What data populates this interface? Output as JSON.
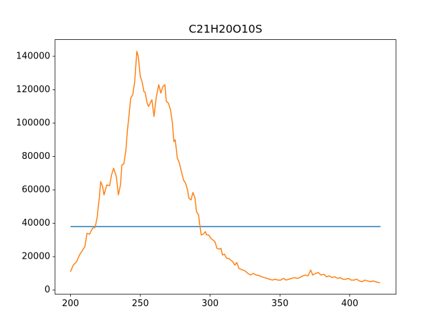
{
  "chart_data": {
    "type": "line",
    "title": "C21H20O10S",
    "series": [
      {
        "color": "#1f77b4",
        "x": [
          200,
          422
        ],
        "values": [
          38000,
          38000
        ]
      },
      {
        "color": "#ff7f0e",
        "x": [
          200,
          202,
          204.4,
          206.4,
          208.3,
          210.3,
          211.8,
          213.7,
          215.7,
          217.6,
          219,
          220.6,
          221.6,
          223,
          224,
          226,
          228,
          229.4,
          230.9,
          232.8,
          234.3,
          235.8,
          236.8,
          238.2,
          239.7,
          240.7,
          241.7,
          243.1,
          244.6,
          246,
          247.5,
          248.5,
          250,
          251.5,
          252.5,
          253.4,
          254.9,
          255.9,
          258.3,
          259.8,
          261.3,
          263.2,
          264.7,
          266.2,
          267.6,
          268.6,
          270.1,
          271.6,
          273,
          274,
          275,
          276.5,
          278,
          279.4,
          280.9,
          282.4,
          283.8,
          284.8,
          286.3,
          287.7,
          289.2,
          290.2,
          291.7,
          292.6,
          293.6,
          295.1,
          296.6,
          297.5,
          299,
          300.5,
          302,
          303.4,
          304.9,
          306.4,
          307.8,
          308.8,
          310.3,
          311.8,
          313.2,
          314.7,
          316.2,
          317.6,
          319.1,
          320.6,
          322,
          323.5,
          325,
          327,
          328.9,
          330.9,
          332.8,
          334.8,
          336.8,
          338.7,
          340.7,
          342.6,
          344.6,
          346.6,
          348.5,
          350.5,
          352.5,
          354.4,
          356.4,
          358.3,
          360.3,
          362.3,
          364.2,
          366.2,
          368.1,
          370.1,
          372,
          373.5,
          375.5,
          377.5,
          379.4,
          381.4,
          383.3,
          385.3,
          387.3,
          389.2,
          391.2,
          393.1,
          395.1,
          397.1,
          399,
          401,
          402.9,
          404.9,
          406.9,
          408.8,
          410.8,
          412.7,
          414.7,
          416.7,
          418.6,
          420.6,
          421.6
        ],
        "values": [
          11000,
          15000,
          17000,
          21000,
          23500,
          26000,
          34000,
          33500,
          37000,
          37500,
          43000,
          55000,
          65000,
          62000,
          57000,
          63000,
          62500,
          69000,
          73000,
          68000,
          57000,
          63000,
          75000,
          75500,
          84000,
          95000,
          103000,
          115000,
          117000,
          125000,
          143000,
          140000,
          128000,
          124000,
          119000,
          118500,
          112000,
          110000,
          114000,
          104000,
          115000,
          123000,
          118000,
          122000,
          123000,
          113000,
          112000,
          108000,
          100000,
          89000,
          90000,
          79000,
          76000,
          71000,
          66000,
          64000,
          60000,
          55000,
          54000,
          58500,
          55000,
          47000,
          45000,
          39000,
          33000,
          33500,
          35000,
          33000,
          33000,
          31000,
          30000,
          29000,
          25000,
          24500,
          25000,
          21000,
          21500,
          19000,
          19000,
          18000,
          17000,
          15000,
          16500,
          13000,
          12500,
          12000,
          11500,
          10000,
          9000,
          10000,
          9000,
          8800,
          8000,
          7500,
          7000,
          6500,
          6000,
          6500,
          6000,
          6000,
          7000,
          6000,
          6500,
          7000,
          7500,
          7000,
          7500,
          8500,
          9000,
          8500,
          12000,
          9000,
          10000,
          10500,
          9000,
          9500,
          8000,
          8500,
          7500,
          8000,
          7000,
          7500,
          6500,
          6500,
          7000,
          6000,
          6000,
          6500,
          5500,
          5000,
          6000,
          5500,
          5000,
          5500,
          5000,
          4500,
          4500
        ]
      }
    ],
    "xlim": [
      188.9,
      433.1
    ],
    "xticks": [
      200,
      250,
      300,
      350,
      400
    ],
    "ylim": [
      -2500,
      150000
    ],
    "yticks": [
      0,
      20000,
      40000,
      60000,
      80000,
      100000,
      120000,
      140000
    ],
    "grid": false
  }
}
